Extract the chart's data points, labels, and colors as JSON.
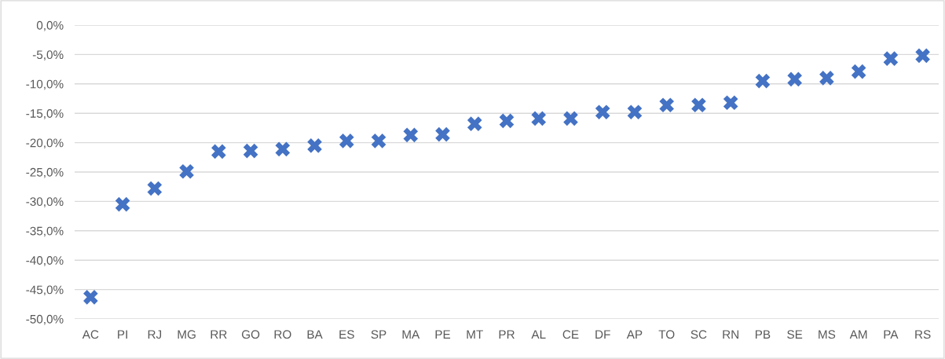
{
  "chart_data": {
    "type": "scatter",
    "categories": [
      "AC",
      "PI",
      "RJ",
      "MG",
      "RR",
      "GO",
      "RO",
      "BA",
      "ES",
      "SP",
      "MA",
      "PE",
      "MT",
      "PR",
      "AL",
      "CE",
      "DF",
      "AP",
      "TO",
      "SC",
      "RN",
      "PB",
      "SE",
      "MS",
      "AM",
      "PA",
      "RS"
    ],
    "series": [
      {
        "color": "#4472c4",
        "values": [
          -46.3,
          -30.5,
          -27.8,
          -24.9,
          -21.5,
          -21.4,
          -21.1,
          -20.5,
          -19.7,
          -19.7,
          -18.7,
          -18.6,
          -16.8,
          -16.3,
          -15.9,
          -15.9,
          -14.8,
          -14.8,
          -13.6,
          -13.6,
          -13.2,
          -9.5,
          -9.2,
          -9.0,
          -7.9,
          -5.7,
          -5.2
        ]
      }
    ],
    "ylim": [
      -50,
      0
    ],
    "yticks": [
      {
        "value": 0,
        "label": "0,0%"
      },
      {
        "value": -5,
        "label": "-5,0%"
      },
      {
        "value": -10,
        "label": "-10,0%"
      },
      {
        "value": -15,
        "label": "-15,0%"
      },
      {
        "value": -20,
        "label": "-20,0%"
      },
      {
        "value": -25,
        "label": "-25,0%"
      },
      {
        "value": -30,
        "label": "-30,0%"
      },
      {
        "value": -35,
        "label": "-35,0%"
      },
      {
        "value": -40,
        "label": "-40,0%"
      },
      {
        "value": -45,
        "label": "-45,0%"
      },
      {
        "value": -50,
        "label": "-50,0%"
      }
    ],
    "grid": "y",
    "marker": "cross",
    "legend": false
  }
}
